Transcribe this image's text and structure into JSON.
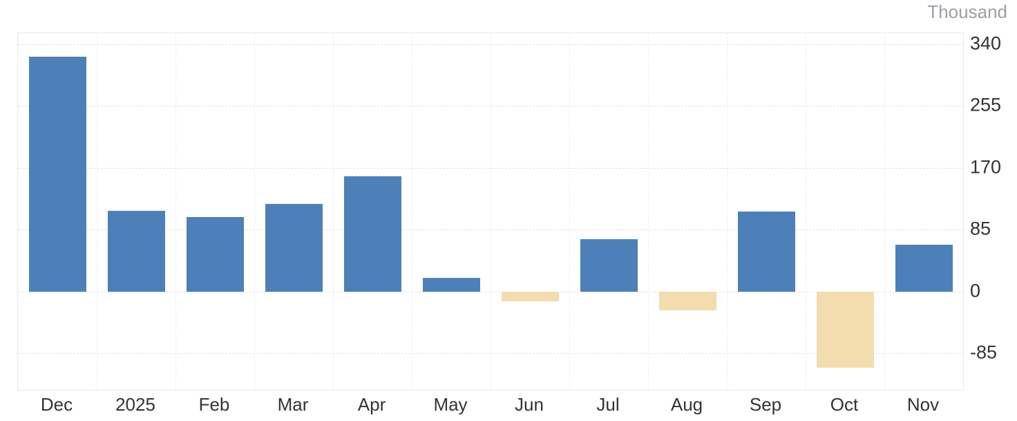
{
  "chart": {
    "unit_label": "Thousand"
  },
  "chart_data": {
    "type": "bar",
    "categories": [
      "Dec",
      "2025",
      "Feb",
      "Mar",
      "Apr",
      "May",
      "Jun",
      "Jul",
      "Aug",
      "Sep",
      "Oct",
      "Nov"
    ],
    "values": [
      323,
      111,
      102,
      120,
      158,
      19,
      -13,
      72,
      -26,
      110,
      -105,
      64
    ],
    "title": "",
    "xlabel": "",
    "ylabel": "Thousand",
    "ylim": [
      -135,
      355
    ],
    "yticks": [
      340,
      255,
      170,
      85,
      0,
      -85
    ],
    "grid": true,
    "legend": false,
    "positive_color": "#4d80b8",
    "negative_color": "#f3ddae"
  }
}
